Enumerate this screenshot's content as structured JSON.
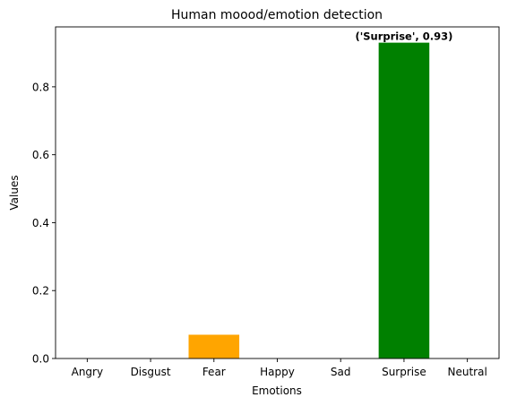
{
  "chart_data": {
    "type": "bar",
    "title": "Human moood/emotion detection",
    "xlabel": "Emotions",
    "ylabel": "Values",
    "categories": [
      "Angry",
      "Disgust",
      "Fear",
      "Happy",
      "Sad",
      "Surprise",
      "Neutral"
    ],
    "values": [
      0,
      0,
      0.07,
      0,
      0,
      0.93,
      0
    ],
    "colors": [
      "#1f77b4",
      "#1f77b4",
      "#ffa500",
      "#1f77b4",
      "#1f77b4",
      "#008000",
      "#1f77b4"
    ],
    "ylim": [
      0,
      0.9765
    ],
    "yticks": [
      0.0,
      0.2,
      0.4,
      0.6,
      0.8
    ],
    "ytick_labels": [
      "0.0",
      "0.2",
      "0.4",
      "0.6",
      "0.8"
    ],
    "annotation": {
      "text": "('Surprise', 0.93)",
      "category": "Surprise",
      "value": 0.93
    },
    "grid": false,
    "legend": "none"
  }
}
